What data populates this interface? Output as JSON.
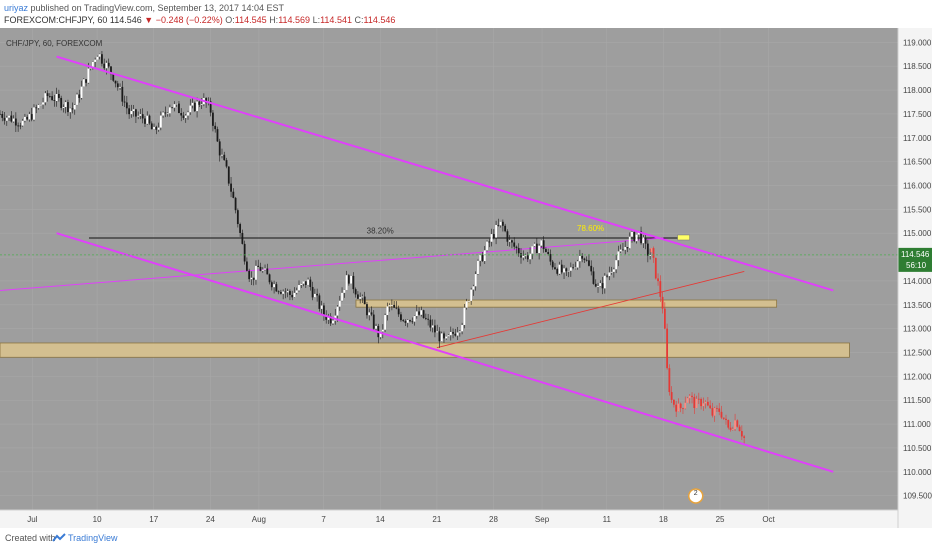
{
  "header": {
    "username": "uriyaz",
    "published_text": "published on TradingView.com, September 13, 2017 14:04 EST",
    "symbol": "FOREXCOM:CHFJPY, 60",
    "last": "114.546",
    "change": "−0.248 (−0.22%)",
    "open_label": "O:",
    "open": "114.545",
    "high_label": "H:",
    "high": "114.569",
    "low_label": "L:",
    "low": "114.541",
    "close_label": "C:",
    "close": "114.546"
  },
  "footer": {
    "created_with": "Created with",
    "brand": "TradingView"
  },
  "colors": {
    "background": "#9e9e9e",
    "axis_bg": "#f4f4f4",
    "channel": "#e040fb",
    "projection": "#e53935",
    "zone": "#d8c28e",
    "price_badge": "#2e7d32"
  },
  "chart_data": {
    "type": "candlestick",
    "title": "CHF/JPY, 60, FOREXCOM",
    "ylim": [
      109.2,
      119.3
    ],
    "xlim": [
      0,
      111
    ],
    "y_ticks": [
      "119.000",
      "118.500",
      "118.000",
      "117.500",
      "117.000",
      "116.500",
      "116.000",
      "115.500",
      "115.000",
      "114.500",
      "114.000",
      "113.500",
      "113.000",
      "112.500",
      "112.000",
      "111.500",
      "111.000",
      "110.500",
      "110.000",
      "109.500"
    ],
    "x_ticks": [
      {
        "label": "Jul",
        "x": 4
      },
      {
        "label": "10",
        "x": 12
      },
      {
        "label": "17",
        "x": 19
      },
      {
        "label": "24",
        "x": 26
      },
      {
        "label": "Aug",
        "x": 32
      },
      {
        "label": "7",
        "x": 40
      },
      {
        "label": "14",
        "x": 47
      },
      {
        "label": "21",
        "x": 54
      },
      {
        "label": "28",
        "x": 61
      },
      {
        "label": "Sep",
        "x": 67
      },
      {
        "label": "11",
        "x": 75
      },
      {
        "label": "18",
        "x": 82
      },
      {
        "label": "25",
        "x": 89
      },
      {
        "label": "Oct",
        "x": 95
      }
    ],
    "current_price": "114.546",
    "countdown": "56:10",
    "current_value": 114.546,
    "price_path": [
      [
        0,
        117.5
      ],
      [
        3,
        117.3
      ],
      [
        6,
        117.9
      ],
      [
        9,
        117.6
      ],
      [
        11,
        118.4
      ],
      [
        12,
        118.8
      ],
      [
        14,
        118.3
      ],
      [
        16,
        117.5
      ],
      [
        18,
        117.4
      ],
      [
        19,
        117.1
      ],
      [
        21,
        117.7
      ],
      [
        23,
        117.5
      ],
      [
        25,
        117.8
      ],
      [
        26,
        117.6
      ],
      [
        27,
        116.8
      ],
      [
        28,
        116.3
      ],
      [
        29,
        115.6
      ],
      [
        30,
        114.7
      ],
      [
        31,
        114.0
      ],
      [
        32,
        114.3
      ],
      [
        34,
        113.9
      ],
      [
        36,
        113.7
      ],
      [
        38,
        114.0
      ],
      [
        40,
        113.3
      ],
      [
        41,
        113.2
      ],
      [
        43,
        114.1
      ],
      [
        45,
        113.5
      ],
      [
        47,
        112.8
      ],
      [
        48,
        113.5
      ],
      [
        50,
        113.2
      ],
      [
        52,
        113.3
      ],
      [
        54,
        112.9
      ],
      [
        55,
        112.7
      ],
      [
        57,
        113.1
      ],
      [
        59,
        114.3
      ],
      [
        61,
        115.0
      ],
      [
        62,
        115.2
      ],
      [
        63,
        114.8
      ],
      [
        65,
        114.5
      ],
      [
        67,
        114.8
      ],
      [
        68,
        114.4
      ],
      [
        70,
        114.1
      ],
      [
        72,
        114.6
      ],
      [
        74,
        113.8
      ],
      [
        76,
        114.4
      ],
      [
        78,
        114.9
      ],
      [
        79,
        115.0
      ],
      [
        80,
        114.6
      ],
      [
        80.5,
        114.546
      ]
    ],
    "projection_path": [
      [
        80.5,
        114.6
      ],
      [
        81,
        114.2
      ],
      [
        82,
        113.4
      ],
      [
        82.5,
        112.0
      ],
      [
        83,
        111.5
      ],
      [
        84,
        111.3
      ],
      [
        85,
        111.6
      ],
      [
        86,
        111.4
      ],
      [
        87,
        111.5
      ],
      [
        88,
        111.2
      ],
      [
        89,
        111.3
      ],
      [
        90,
        110.9
      ],
      [
        91,
        111.1
      ],
      [
        92,
        110.7
      ]
    ],
    "channel_upper": [
      [
        7,
        118.7
      ],
      [
        103,
        113.8
      ]
    ],
    "channel_lower": [
      [
        7,
        115.0
      ],
      [
        103,
        110.0
      ]
    ],
    "trend_line": [
      [
        0,
        113.8
      ],
      [
        82,
        114.9
      ]
    ],
    "projection_trend": [
      [
        54,
        112.6
      ],
      [
        92,
        114.2
      ]
    ],
    "horizontal_level": {
      "x1": 11,
      "x2": 84,
      "y": 114.9
    },
    "fib_labels": [
      {
        "text": "38.20%",
        "x": 47,
        "y": 114.95
      },
      {
        "text": "78.60%",
        "x": 73,
        "y": 115.0
      }
    ],
    "zones": [
      {
        "x1": 0,
        "x2": 105,
        "y1": 112.4,
        "y2": 112.7
      },
      {
        "x1": 44,
        "x2": 96,
        "y1": 113.45,
        "y2": 113.6
      }
    ],
    "marker_label": "2"
  }
}
